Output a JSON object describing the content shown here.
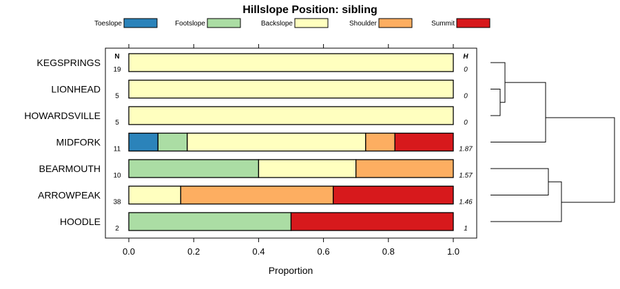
{
  "chart_data": {
    "type": "bar",
    "orientation": "horizontal-stacked",
    "title": "Hillslope Position: sibling",
    "xlabel": "Proportion",
    "xlim": [
      0,
      1
    ],
    "xticks": [
      "0.0",
      "0.2",
      "0.4",
      "0.6",
      "0.8",
      "1.0"
    ],
    "n_header": "N",
    "h_header": "H",
    "legend_position": "top",
    "legend": [
      {
        "name": "Toeslope",
        "color": "#2B83BA"
      },
      {
        "name": "Footslope",
        "color": "#ABDDA4"
      },
      {
        "name": "Backslope",
        "color": "#FFFFBF"
      },
      {
        "name": "Shoulder",
        "color": "#FDAE61"
      },
      {
        "name": "Summit",
        "color": "#D7191C"
      }
    ],
    "rows": [
      {
        "label": "KEGSPRINGS",
        "n": "19",
        "h": "0",
        "values": [
          0,
          0,
          1.0,
          0,
          0
        ]
      },
      {
        "label": "LIONHEAD",
        "n": "5",
        "h": "0",
        "values": [
          0,
          0,
          1.0,
          0,
          0
        ]
      },
      {
        "label": "HOWARDSVILLE",
        "n": "5",
        "h": "0",
        "values": [
          0,
          0,
          1.0,
          0,
          0
        ]
      },
      {
        "label": "MIDFORK",
        "n": "11",
        "h": "1.87",
        "values": [
          0.09,
          0.09,
          0.55,
          0.09,
          0.18
        ]
      },
      {
        "label": "BEARMOUTH",
        "n": "10",
        "h": "1.57",
        "values": [
          0,
          0.4,
          0.3,
          0.3,
          0
        ]
      },
      {
        "label": "ARROWPEAK",
        "n": "38",
        "h": "1.46",
        "values": [
          0,
          0,
          0.16,
          0.47,
          0.37
        ]
      },
      {
        "label": "HOODLE",
        "n": "2",
        "h": "1",
        "values": [
          0,
          0.5,
          0,
          0,
          0.5
        ]
      }
    ]
  }
}
